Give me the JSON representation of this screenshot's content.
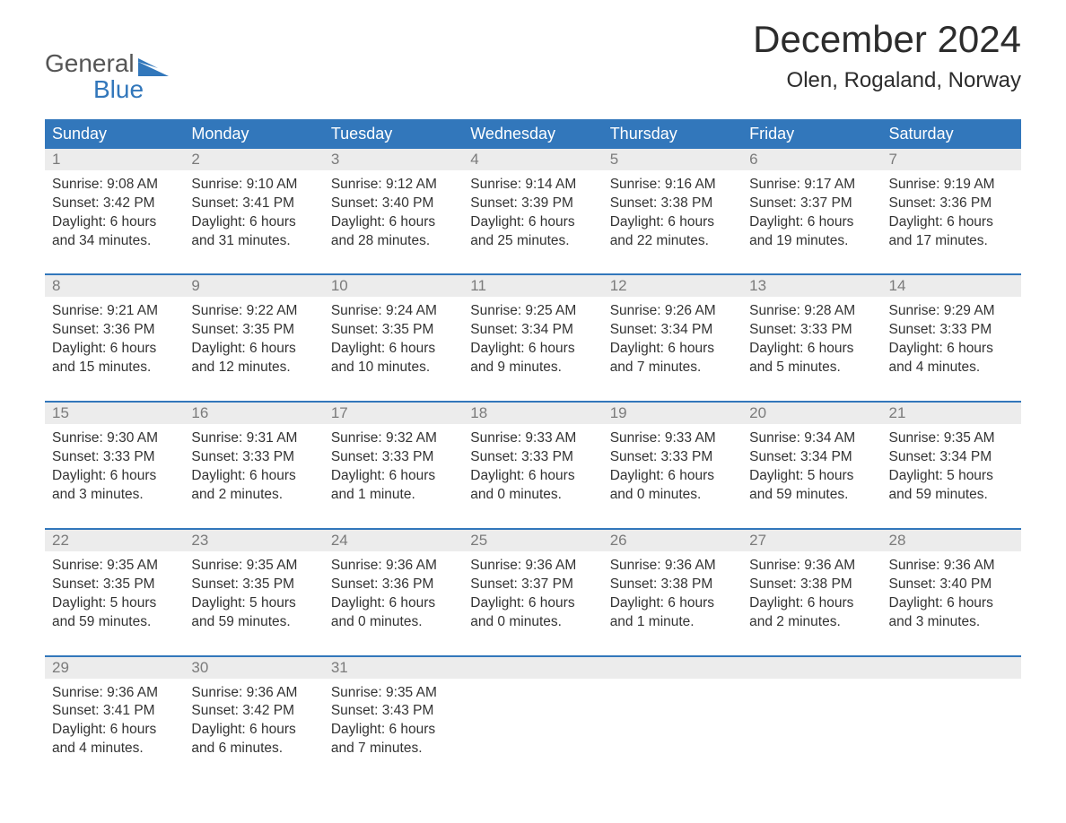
{
  "brand": {
    "word1": "General",
    "word2": "Blue",
    "accent": "#3277bb",
    "text": "#555555"
  },
  "title": "December 2024",
  "location": "Olen, Rogaland, Norway",
  "colors": {
    "header_bg": "#3277bb",
    "header_text": "#ffffff",
    "daynum_bg": "#ececec",
    "daynum_text": "#7b7b7b",
    "body_text": "#333333",
    "rule": "#3277bb",
    "page_bg": "#ffffff"
  },
  "typography": {
    "title_fontsize": 42,
    "location_fontsize": 24,
    "dayheader_fontsize": 18,
    "daynum_fontsize": 17,
    "body_fontsize": 15.5
  },
  "days_of_week": [
    "Sunday",
    "Monday",
    "Tuesday",
    "Wednesday",
    "Thursday",
    "Friday",
    "Saturday"
  ],
  "weeks": [
    [
      {
        "n": "1",
        "sr": "Sunrise: 9:08 AM",
        "ss": "Sunset: 3:42 PM",
        "d1": "Daylight: 6 hours",
        "d2": "and 34 minutes."
      },
      {
        "n": "2",
        "sr": "Sunrise: 9:10 AM",
        "ss": "Sunset: 3:41 PM",
        "d1": "Daylight: 6 hours",
        "d2": "and 31 minutes."
      },
      {
        "n": "3",
        "sr": "Sunrise: 9:12 AM",
        "ss": "Sunset: 3:40 PM",
        "d1": "Daylight: 6 hours",
        "d2": "and 28 minutes."
      },
      {
        "n": "4",
        "sr": "Sunrise: 9:14 AM",
        "ss": "Sunset: 3:39 PM",
        "d1": "Daylight: 6 hours",
        "d2": "and 25 minutes."
      },
      {
        "n": "5",
        "sr": "Sunrise: 9:16 AM",
        "ss": "Sunset: 3:38 PM",
        "d1": "Daylight: 6 hours",
        "d2": "and 22 minutes."
      },
      {
        "n": "6",
        "sr": "Sunrise: 9:17 AM",
        "ss": "Sunset: 3:37 PM",
        "d1": "Daylight: 6 hours",
        "d2": "and 19 minutes."
      },
      {
        "n": "7",
        "sr": "Sunrise: 9:19 AM",
        "ss": "Sunset: 3:36 PM",
        "d1": "Daylight: 6 hours",
        "d2": "and 17 minutes."
      }
    ],
    [
      {
        "n": "8",
        "sr": "Sunrise: 9:21 AM",
        "ss": "Sunset: 3:36 PM",
        "d1": "Daylight: 6 hours",
        "d2": "and 15 minutes."
      },
      {
        "n": "9",
        "sr": "Sunrise: 9:22 AM",
        "ss": "Sunset: 3:35 PM",
        "d1": "Daylight: 6 hours",
        "d2": "and 12 minutes."
      },
      {
        "n": "10",
        "sr": "Sunrise: 9:24 AM",
        "ss": "Sunset: 3:35 PM",
        "d1": "Daylight: 6 hours",
        "d2": "and 10 minutes."
      },
      {
        "n": "11",
        "sr": "Sunrise: 9:25 AM",
        "ss": "Sunset: 3:34 PM",
        "d1": "Daylight: 6 hours",
        "d2": "and 9 minutes."
      },
      {
        "n": "12",
        "sr": "Sunrise: 9:26 AM",
        "ss": "Sunset: 3:34 PM",
        "d1": "Daylight: 6 hours",
        "d2": "and 7 minutes."
      },
      {
        "n": "13",
        "sr": "Sunrise: 9:28 AM",
        "ss": "Sunset: 3:33 PM",
        "d1": "Daylight: 6 hours",
        "d2": "and 5 minutes."
      },
      {
        "n": "14",
        "sr": "Sunrise: 9:29 AM",
        "ss": "Sunset: 3:33 PM",
        "d1": "Daylight: 6 hours",
        "d2": "and 4 minutes."
      }
    ],
    [
      {
        "n": "15",
        "sr": "Sunrise: 9:30 AM",
        "ss": "Sunset: 3:33 PM",
        "d1": "Daylight: 6 hours",
        "d2": "and 3 minutes."
      },
      {
        "n": "16",
        "sr": "Sunrise: 9:31 AM",
        "ss": "Sunset: 3:33 PM",
        "d1": "Daylight: 6 hours",
        "d2": "and 2 minutes."
      },
      {
        "n": "17",
        "sr": "Sunrise: 9:32 AM",
        "ss": "Sunset: 3:33 PM",
        "d1": "Daylight: 6 hours",
        "d2": "and 1 minute."
      },
      {
        "n": "18",
        "sr": "Sunrise: 9:33 AM",
        "ss": "Sunset: 3:33 PM",
        "d1": "Daylight: 6 hours",
        "d2": "and 0 minutes."
      },
      {
        "n": "19",
        "sr": "Sunrise: 9:33 AM",
        "ss": "Sunset: 3:33 PM",
        "d1": "Daylight: 6 hours",
        "d2": "and 0 minutes."
      },
      {
        "n": "20",
        "sr": "Sunrise: 9:34 AM",
        "ss": "Sunset: 3:34 PM",
        "d1": "Daylight: 5 hours",
        "d2": "and 59 minutes."
      },
      {
        "n": "21",
        "sr": "Sunrise: 9:35 AM",
        "ss": "Sunset: 3:34 PM",
        "d1": "Daylight: 5 hours",
        "d2": "and 59 minutes."
      }
    ],
    [
      {
        "n": "22",
        "sr": "Sunrise: 9:35 AM",
        "ss": "Sunset: 3:35 PM",
        "d1": "Daylight: 5 hours",
        "d2": "and 59 minutes."
      },
      {
        "n": "23",
        "sr": "Sunrise: 9:35 AM",
        "ss": "Sunset: 3:35 PM",
        "d1": "Daylight: 5 hours",
        "d2": "and 59 minutes."
      },
      {
        "n": "24",
        "sr": "Sunrise: 9:36 AM",
        "ss": "Sunset: 3:36 PM",
        "d1": "Daylight: 6 hours",
        "d2": "and 0 minutes."
      },
      {
        "n": "25",
        "sr": "Sunrise: 9:36 AM",
        "ss": "Sunset: 3:37 PM",
        "d1": "Daylight: 6 hours",
        "d2": "and 0 minutes."
      },
      {
        "n": "26",
        "sr": "Sunrise: 9:36 AM",
        "ss": "Sunset: 3:38 PM",
        "d1": "Daylight: 6 hours",
        "d2": "and 1 minute."
      },
      {
        "n": "27",
        "sr": "Sunrise: 9:36 AM",
        "ss": "Sunset: 3:38 PM",
        "d1": "Daylight: 6 hours",
        "d2": "and 2 minutes."
      },
      {
        "n": "28",
        "sr": "Sunrise: 9:36 AM",
        "ss": "Sunset: 3:40 PM",
        "d1": "Daylight: 6 hours",
        "d2": "and 3 minutes."
      }
    ],
    [
      {
        "n": "29",
        "sr": "Sunrise: 9:36 AM",
        "ss": "Sunset: 3:41 PM",
        "d1": "Daylight: 6 hours",
        "d2": "and 4 minutes."
      },
      {
        "n": "30",
        "sr": "Sunrise: 9:36 AM",
        "ss": "Sunset: 3:42 PM",
        "d1": "Daylight: 6 hours",
        "d2": "and 6 minutes."
      },
      {
        "n": "31",
        "sr": "Sunrise: 9:35 AM",
        "ss": "Sunset: 3:43 PM",
        "d1": "Daylight: 6 hours",
        "d2": "and 7 minutes."
      },
      null,
      null,
      null,
      null
    ]
  ]
}
